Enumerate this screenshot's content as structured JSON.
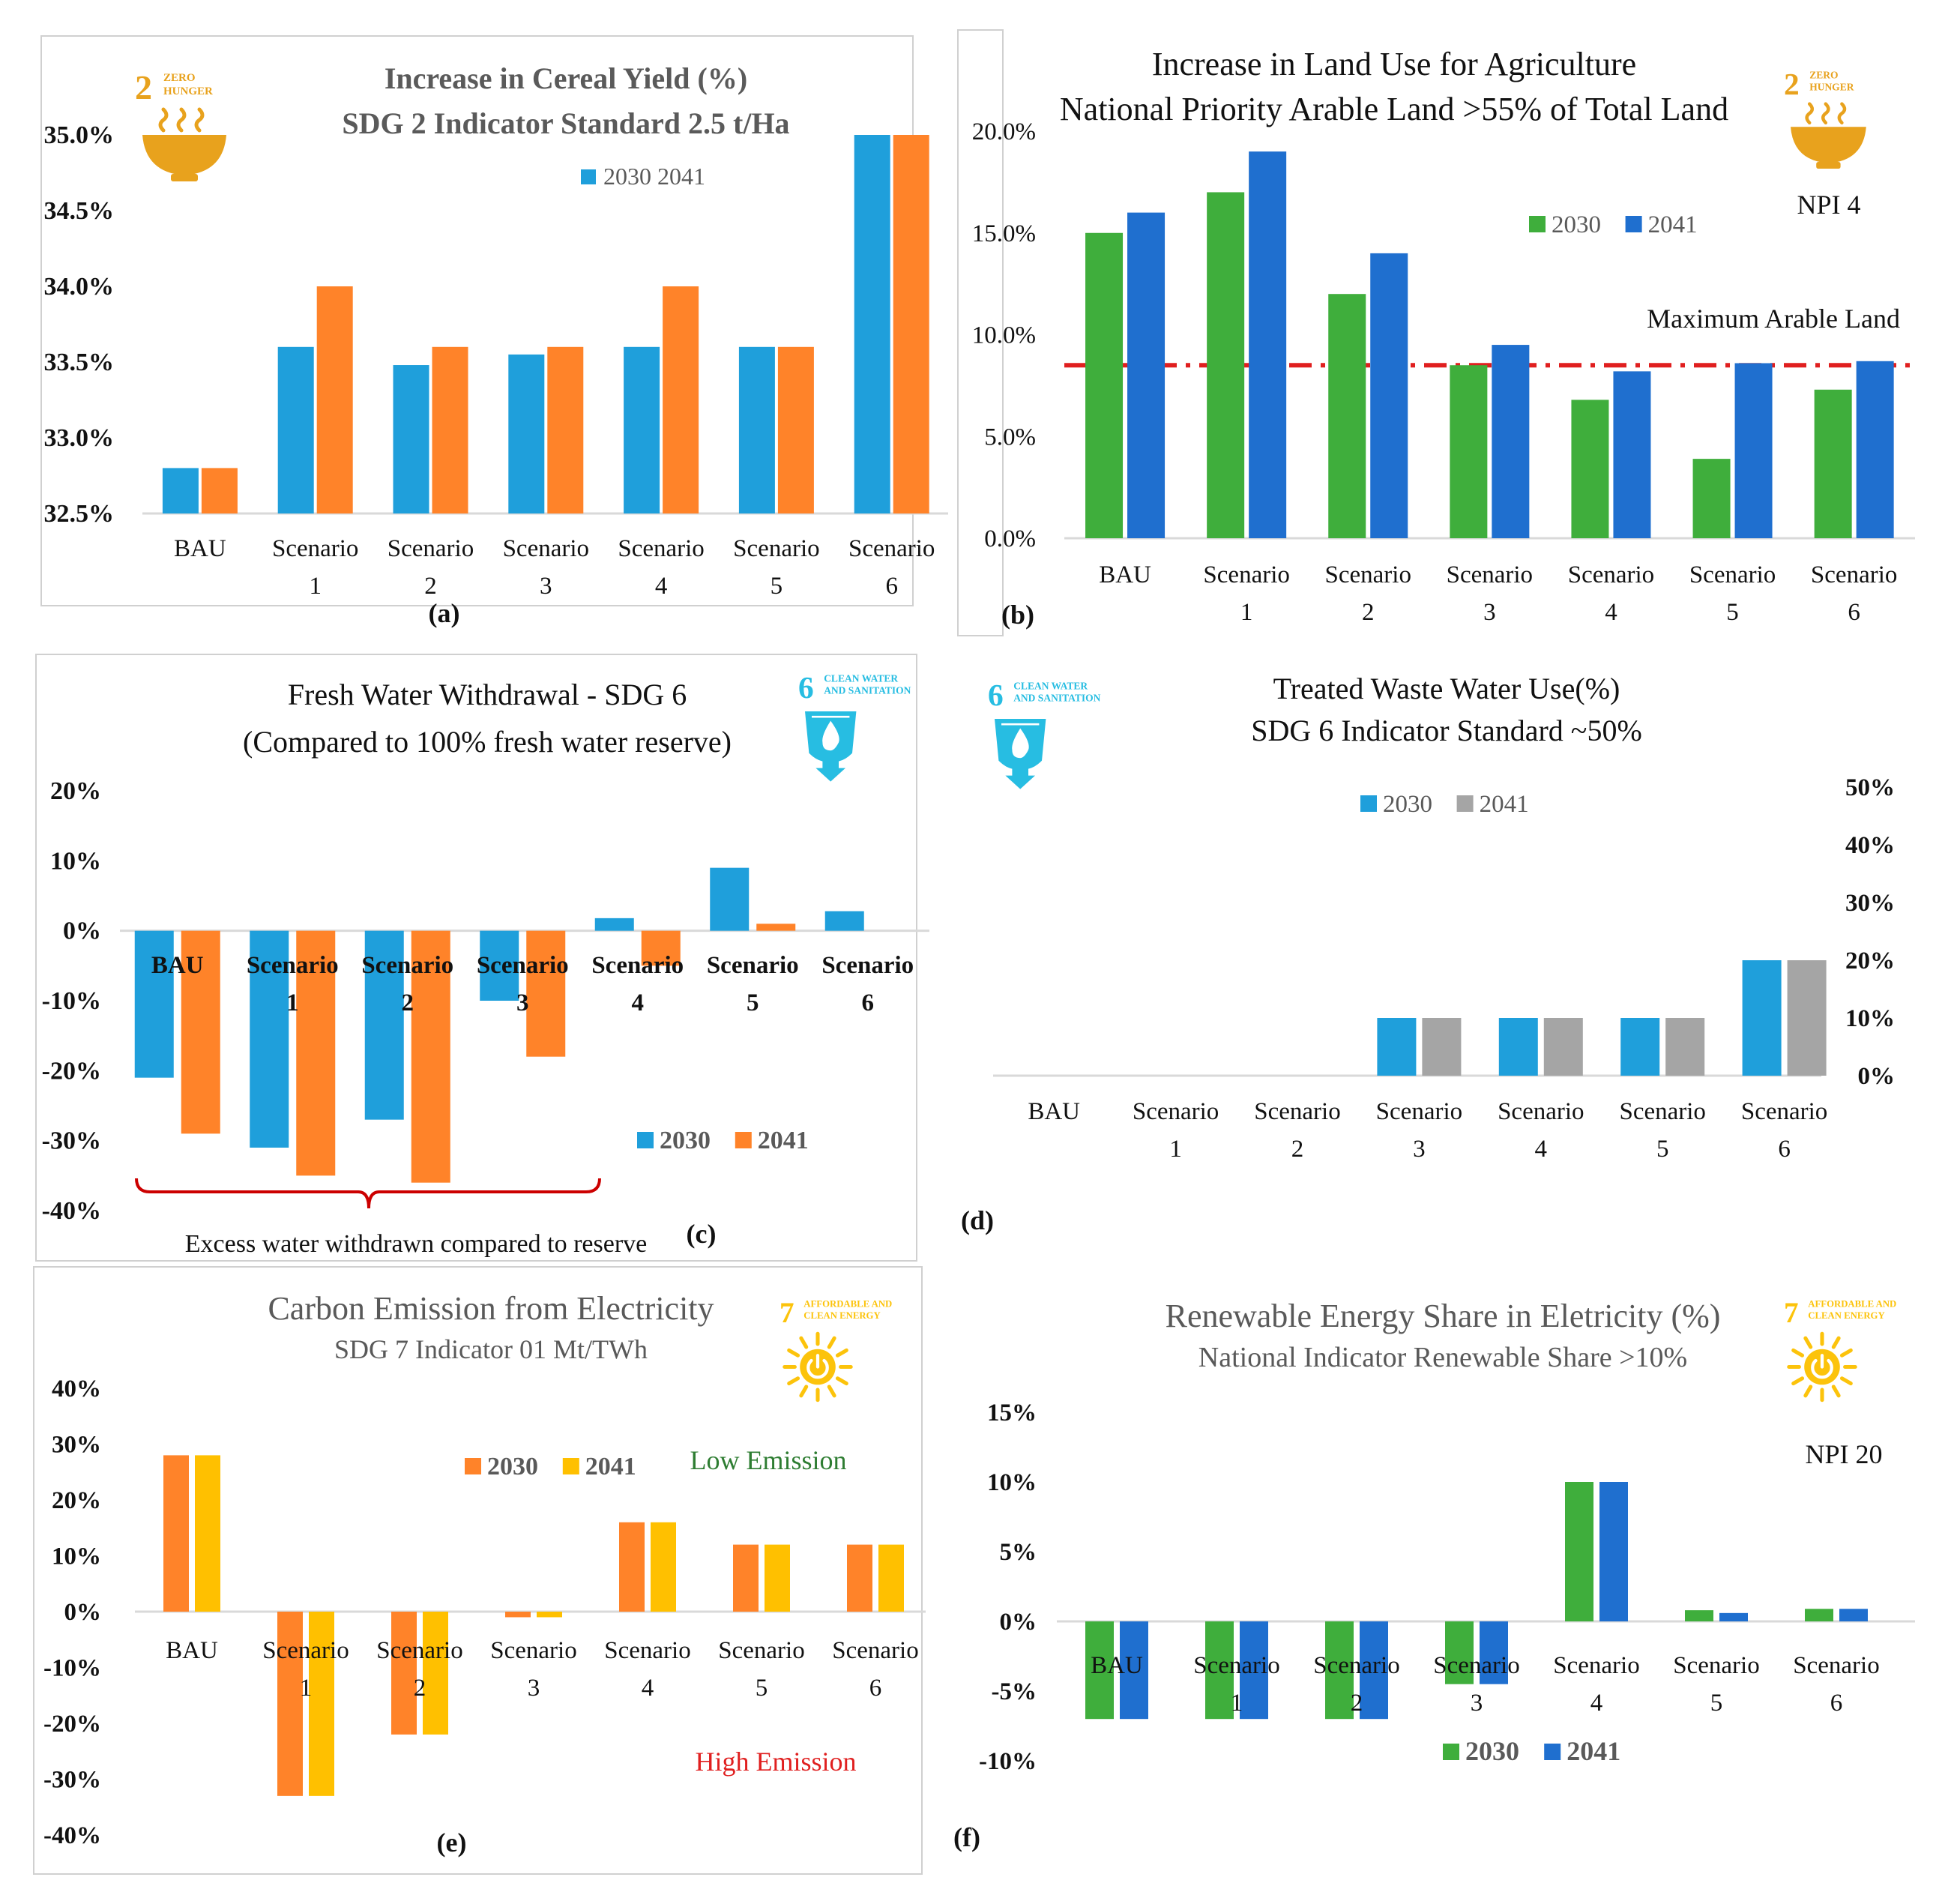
{
  "figure": "Six-panel SDG indicator comparison",
  "chart_data": [
    {
      "id": "a",
      "type": "bar",
      "panel_label": "(a)",
      "title": "Increase in Cereal Yield (%)",
      "subtitle": "SDG 2 Indicator Standard 2.5 t/Ha",
      "categories": [
        "BAU",
        "Scenario 1",
        "Scenario 2",
        "Scenario 3",
        "Scenario 4",
        "Scenario 5",
        "Scenario 6"
      ],
      "series": [
        {
          "name": "2030",
          "color": "#1f9fdb",
          "values": [
            32.8,
            33.6,
            33.48,
            33.55,
            33.6,
            33.6,
            35.0
          ]
        },
        {
          "name": "2041",
          "color": "#ff8329",
          "values": [
            32.8,
            34.0,
            33.6,
            33.6,
            34.0,
            33.6,
            35.0
          ]
        }
      ],
      "legend_text": "2030 2041",
      "ylim": [
        32.5,
        35.0
      ],
      "yticks": [
        "35.0%",
        "34.5%",
        "34.0%",
        "33.5%",
        "33.0%",
        "32.5%"
      ],
      "sdg": {
        "number": "2",
        "line1": "ZERO",
        "line2": "HUNGER",
        "color": "#e8a21d",
        "icon": "bowl-icon"
      }
    },
    {
      "id": "b",
      "type": "bar",
      "panel_label": "(b)",
      "title": "Increase in Land Use for Agriculture",
      "subtitle": "National Priority Arable Land >55% of Total Land",
      "categories": [
        "BAU",
        "Scenario 1",
        "Scenario 2",
        "Scenario 3",
        "Scenario 4",
        "Scenario 5",
        "Scenario 6"
      ],
      "series": [
        {
          "name": "2030",
          "color": "#3fae3c",
          "values": [
            15.0,
            17.0,
            12.0,
            8.5,
            6.8,
            3.9,
            7.3
          ]
        },
        {
          "name": "2041",
          "color": "#1f6fcf",
          "values": [
            16.0,
            19.0,
            14.0,
            9.5,
            8.2,
            8.6,
            8.7
          ]
        }
      ],
      "ylim": [
        0,
        20
      ],
      "yticks": [
        "20.0%",
        "15.0%",
        "10.0%",
        "5.0%",
        "0.0%"
      ],
      "reference_line": {
        "value": 8.5,
        "label": "Maximum Arable Land",
        "color": "#e01f1f"
      },
      "annotation": "NPI 4",
      "sdg": {
        "number": "2",
        "line1": "ZERO",
        "line2": "HUNGER",
        "color": "#e8a21d",
        "icon": "bowl-icon"
      }
    },
    {
      "id": "c",
      "type": "bar",
      "panel_label": "(c)",
      "title": "Fresh Water Withdrawal - SDG 6",
      "subtitle": "(Compared to 100% fresh water reserve)",
      "categories": [
        "BAU",
        "Scenario 1",
        "Scenario 2",
        "Scenario 3",
        "Scenario 4",
        "Scenario 5",
        "Scenario 6"
      ],
      "series": [
        {
          "name": "2030",
          "color": "#1f9fdb",
          "values": [
            -21,
            -31,
            -27,
            -10,
            1.8,
            9,
            2.8
          ]
        },
        {
          "name": "2041",
          "color": "#ff8329",
          "values": [
            -29,
            -35,
            -36,
            -18,
            -5,
            1,
            0
          ]
        }
      ],
      "ylim": [
        -40,
        20
      ],
      "yticks": [
        "20%",
        "10%",
        "0%",
        "-10%",
        "-20%",
        "-30%",
        "-40%"
      ],
      "bracket_note": "Excess water withdrawn compared to reserve",
      "sdg": {
        "number": "6",
        "line1": "CLEAN WATER",
        "line2": "AND SANITATION",
        "color": "#27bde2",
        "icon": "water-drop-icon"
      }
    },
    {
      "id": "d",
      "type": "bar",
      "panel_label": "(d)",
      "title": "Treated Waste Water Use(%)",
      "subtitle": "SDG 6 Indicator Standard ~50%",
      "categories": [
        "BAU",
        "Scenario 1",
        "Scenario 2",
        "Scenario 3",
        "Scenario 4",
        "Scenario 5",
        "Scenario 6"
      ],
      "series": [
        {
          "name": "2030",
          "color": "#1f9fdb",
          "values": [
            0,
            0,
            0,
            10,
            10,
            10,
            20
          ]
        },
        {
          "name": "2041",
          "color": "#a5a5a5",
          "values": [
            0,
            0,
            0,
            10,
            10,
            10,
            20
          ]
        }
      ],
      "ylim": [
        0,
        50
      ],
      "yticks": [
        "50%",
        "40%",
        "30%",
        "20%",
        "10%",
        "0%"
      ],
      "sdg": {
        "number": "6",
        "line1": "CLEAN WATER",
        "line2": "AND SANITATION",
        "color": "#27bde2",
        "icon": "water-drop-icon"
      }
    },
    {
      "id": "e",
      "type": "bar",
      "panel_label": "(e)",
      "title": "Carbon Emission from Electricity",
      "subtitle": "SDG 7 Indicator 01 Mt/TWh",
      "categories": [
        "BAU",
        "Scenario 1",
        "Scenario 2",
        "Scenario 3",
        "Scenario 4",
        "Scenario 5",
        "Scenario 6"
      ],
      "series": [
        {
          "name": "2030",
          "color": "#ff8329",
          "values": [
            28,
            -33,
            -22,
            -1,
            16,
            12,
            12
          ]
        },
        {
          "name": "2041",
          "color": "#ffc000",
          "values": [
            28,
            -33,
            -22,
            -1,
            16,
            12,
            12
          ]
        }
      ],
      "ylim": [
        -40,
        40
      ],
      "yticks": [
        "40%",
        "30%",
        "20%",
        "10%",
        "0%",
        "-10%",
        "-20%",
        "-30%",
        "-40%"
      ],
      "note_low": "Low Emission",
      "note_high": "High Emission",
      "sdg": {
        "number": "7",
        "line1": "AFFORDABLE AND",
        "line2": "CLEAN ENERGY",
        "color": "#fcc30b",
        "icon": "sun-power-icon"
      }
    },
    {
      "id": "f",
      "type": "bar",
      "panel_label": "(f)",
      "title": "Renewable Energy Share in Eletricity (%)",
      "subtitle": "National Indicator Renewable Share >10%",
      "categories": [
        "BAU",
        "Scenario 1",
        "Scenario 2",
        "Scenario 3",
        "Scenario 4",
        "Scenario 5",
        "Scenario 6"
      ],
      "series": [
        {
          "name": "2030",
          "color": "#3fae3c",
          "values": [
            -7,
            -7,
            -7,
            -4.5,
            10,
            0.8,
            0.9
          ]
        },
        {
          "name": "2041",
          "color": "#1f6fcf",
          "values": [
            -7,
            -7,
            -7,
            -4.5,
            10,
            0.6,
            0.9
          ]
        }
      ],
      "ylim": [
        -10,
        15
      ],
      "yticks": [
        "15%",
        "10%",
        "5%",
        "0%",
        "-5%",
        "-10%"
      ],
      "annotation": "NPI 20",
      "sdg": {
        "number": "7",
        "line1": "AFFORDABLE AND",
        "line2": "CLEAN ENERGY",
        "color": "#fcc30b",
        "icon": "sun-power-icon"
      }
    }
  ]
}
